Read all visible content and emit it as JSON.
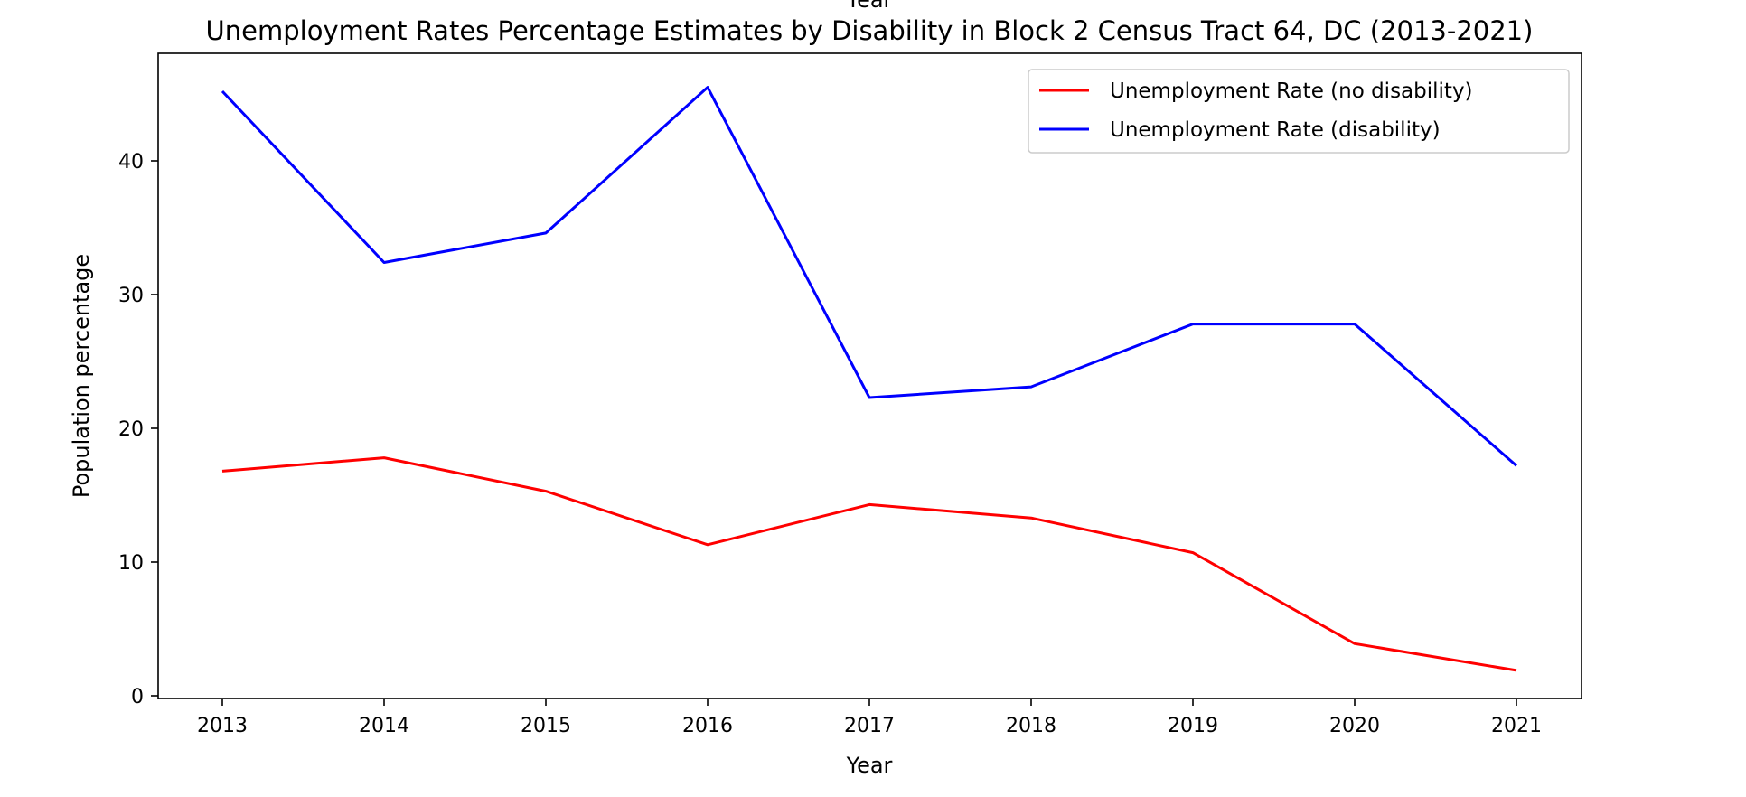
{
  "chart_data": {
    "type": "line",
    "title": "Unemployment Rates Percentage Estimates by Disability in Block 2 Census Tract 64, DC (2013-2021)",
    "clipped_top_label": "Year",
    "xlabel": "Year",
    "ylabel": "Population percentage",
    "x": [
      "2013",
      "2014",
      "2015",
      "2016",
      "2017",
      "2018",
      "2019",
      "2020",
      "2021"
    ],
    "ylim": [
      0,
      47
    ],
    "yticks": [
      0,
      10,
      20,
      30,
      40
    ],
    "grid": false,
    "legend_position": "top-right",
    "series": [
      {
        "name": "Unemployment Rate (no disability)",
        "color": "#ff0000",
        "values": [
          16.8,
          17.8,
          15.3,
          11.3,
          14.3,
          13.3,
          10.7,
          3.9,
          1.9
        ]
      },
      {
        "name": "Unemployment Rate (disability)",
        "color": "#0000ff",
        "values": [
          45.2,
          32.4,
          34.6,
          45.5,
          22.3,
          23.1,
          27.8,
          27.8,
          17.2
        ]
      }
    ]
  }
}
